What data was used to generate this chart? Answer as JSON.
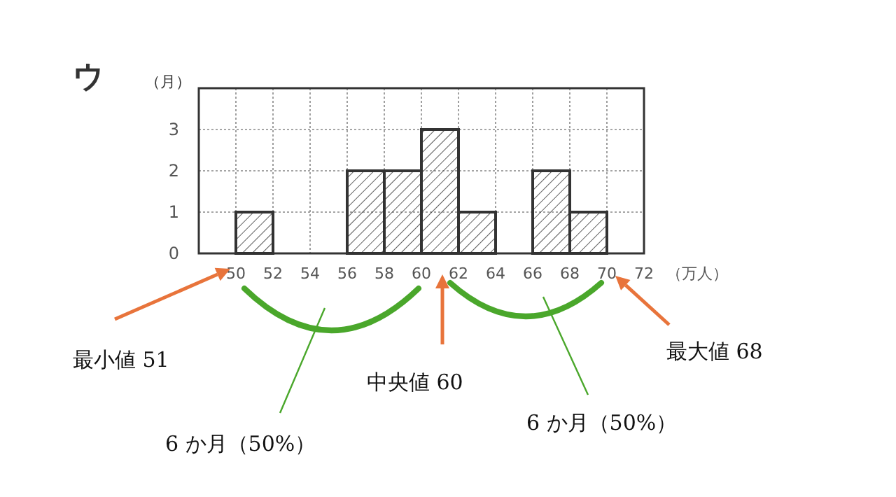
{
  "chart_data": {
    "type": "histogram",
    "title": "ウ",
    "ylabel": "（月）",
    "xlabel": "（万人）",
    "bins": [
      48,
      50,
      52,
      54,
      56,
      58,
      60,
      62,
      64,
      66,
      68,
      70,
      72
    ],
    "values": [
      0,
      1,
      0,
      0,
      2,
      2,
      3,
      1,
      0,
      2,
      1,
      0
    ],
    "color": "#333333",
    "xlim": [
      48,
      72
    ],
    "ylim": [
      0,
      4
    ],
    "xticks": [
      50,
      52,
      54,
      56,
      58,
      60,
      62,
      64,
      66,
      68,
      70,
      72
    ],
    "yticks": [
      0,
      1,
      2,
      3,
      {
        "value": 4,
        "label": null
      }
    ],
    "grid": true,
    "annotations": [
      "最小値 51",
      "6 か月（50%）",
      "中央値 60",
      "6 か月（50%）",
      "最大値 68"
    ]
  }
}
